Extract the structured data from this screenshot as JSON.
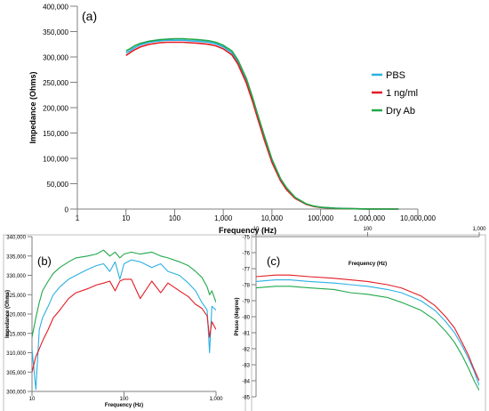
{
  "chart_data": [
    {
      "panel_label": "(a)",
      "type": "line",
      "xscale": "log",
      "xlabel": "Frequency (Hz)",
      "ylabel": "Impedance (Ohms)",
      "xlim": [
        1,
        10000000
      ],
      "ylim": [
        0,
        400000
      ],
      "xticks": [
        "1",
        "10",
        "100",
        "1,000",
        "10,000",
        "100,000",
        "1,000,000",
        "10,000,000"
      ],
      "yticks": [
        "0",
        "50,000",
        "100,000",
        "150,000",
        "200,000",
        "250,000",
        "300,000",
        "350,000",
        "400,000"
      ],
      "grid": false,
      "legend_position": "right",
      "series": [
        {
          "name": "PBS",
          "color": "#2ab0e3",
          "x": [
            10,
            12,
            15,
            20,
            30,
            50,
            70,
            100,
            150,
            200,
            300,
            500,
            700,
            1000,
            1500,
            2000,
            3000,
            4000,
            5000,
            7000,
            10000,
            15000,
            20000,
            30000,
            50000,
            70000,
            100000,
            200000,
            500000,
            1000000,
            2000000,
            4000000
          ],
          "y": [
            308000,
            312000,
            318000,
            324000,
            329000,
            332000,
            333000,
            333000,
            333000,
            332000,
            331000,
            329000,
            326000,
            320000,
            308000,
            290000,
            252000,
            216000,
            185000,
            140000,
            95000,
            58000,
            40000,
            22000,
            10000,
            6000,
            3500,
            1500,
            500,
            200,
            100,
            0
          ]
        },
        {
          "name": "1 ng/ml",
          "color": "#e31b23",
          "x": [
            10,
            12,
            15,
            20,
            30,
            50,
            70,
            100,
            150,
            200,
            300,
            500,
            700,
            1000,
            1500,
            2000,
            3000,
            4000,
            5000,
            7000,
            10000,
            15000,
            20000,
            30000,
            50000,
            70000,
            100000,
            200000,
            500000,
            1000000,
            2000000,
            4000000
          ],
          "y": [
            303000,
            308000,
            314000,
            320000,
            325000,
            328000,
            329000,
            329000,
            329000,
            328000,
            327000,
            325000,
            322000,
            316000,
            304000,
            286000,
            248000,
            212000,
            181000,
            136000,
            92000,
            56000,
            38000,
            21000,
            9500,
            5500,
            3200,
            1400,
            450,
            180,
            90,
            0
          ]
        },
        {
          "name": "Dry Ab",
          "color": "#20a84a",
          "x": [
            10,
            12,
            15,
            20,
            30,
            50,
            70,
            100,
            150,
            200,
            300,
            500,
            700,
            1000,
            1500,
            2000,
            3000,
            4000,
            5000,
            7000,
            10000,
            15000,
            20000,
            30000,
            50000,
            70000,
            100000,
            200000,
            500000,
            1000000,
            2000000,
            4000000
          ],
          "y": [
            312000,
            316000,
            322000,
            327000,
            331000,
            334000,
            335000,
            336000,
            336000,
            335000,
            334000,
            332000,
            329000,
            323000,
            312000,
            294000,
            257000,
            220000,
            189000,
            144000,
            98000,
            60000,
            42000,
            23000,
            10500,
            6200,
            3600,
            1600,
            520,
            210,
            110,
            0
          ]
        }
      ]
    },
    {
      "panel_label": "(b)",
      "type": "line",
      "xscale": "log",
      "xlabel": "Frequency (Hz)",
      "ylabel": "Impedance (Ohms)",
      "xlim": [
        10,
        1000
      ],
      "ylim": [
        300000,
        340000
      ],
      "xticks": [
        "10",
        "100",
        "1,000"
      ],
      "yticks": [
        "300,000",
        "305,000",
        "310,000",
        "315,000",
        "320,000",
        "325,000",
        "330,000",
        "335,000",
        "340,000"
      ],
      "grid": false,
      "series": [
        {
          "name": "PBS",
          "color": "#2ab0e3",
          "x": [
            10,
            11,
            12,
            13,
            15,
            17,
            20,
            25,
            30,
            40,
            50,
            60,
            70,
            80,
            90,
            100,
            120,
            150,
            200,
            250,
            300,
            400,
            500,
            600,
            700,
            800,
            850,
            900,
            1000
          ],
          "y": [
            311000,
            300500,
            316000,
            319000,
            322000,
            325000,
            327000,
            329000,
            330000,
            331500,
            332500,
            333000,
            331000,
            333500,
            329000,
            333000,
            334000,
            333500,
            332000,
            333000,
            331000,
            330000,
            328000,
            326000,
            323000,
            321000,
            310000,
            322000,
            321000
          ]
        },
        {
          "name": "1 ng/ml",
          "color": "#e31b23",
          "x": [
            10,
            11,
            12,
            13,
            15,
            17,
            20,
            25,
            30,
            40,
            50,
            60,
            70,
            80,
            90,
            100,
            120,
            150,
            200,
            250,
            300,
            400,
            500,
            600,
            700,
            800,
            850,
            900,
            1000
          ],
          "y": [
            305000,
            309000,
            311000,
            313000,
            316000,
            319000,
            321000,
            324000,
            325500,
            326500,
            327500,
            328000,
            328500,
            326000,
            328500,
            329000,
            329000,
            324000,
            328500,
            325500,
            328000,
            326000,
            324500,
            322500,
            321500,
            319500,
            314000,
            318000,
            316000
          ]
        },
        {
          "name": "Dry Ab",
          "color": "#20a84a",
          "x": [
            10,
            11,
            12,
            13,
            15,
            17,
            20,
            25,
            30,
            40,
            50,
            60,
            70,
            80,
            90,
            100,
            120,
            150,
            200,
            250,
            300,
            400,
            500,
            600,
            700,
            800,
            850,
            900,
            1000
          ],
          "y": [
            314000,
            319000,
            323000,
            326000,
            328500,
            330500,
            332000,
            333500,
            334500,
            335000,
            335500,
            336500,
            335000,
            336000,
            334500,
            335500,
            336000,
            335500,
            336000,
            335000,
            334500,
            333500,
            332500,
            331000,
            329500,
            327000,
            325000,
            326000,
            323000
          ]
        }
      ]
    },
    {
      "panel_label": "(c)",
      "type": "line",
      "xscale": "log",
      "xlabel": "Frequency (Hz)",
      "ylabel": "Phase (degree)",
      "xlim": [
        10,
        1000
      ],
      "ylim": [
        -85,
        -75
      ],
      "xticks": [
        "10",
        "100",
        "1,000"
      ],
      "yticks": [
        "-75",
        "-76",
        "-77",
        "-78",
        "-79",
        "-80",
        "-81",
        "-82",
        "-83",
        "-84",
        "-85"
      ],
      "grid": false,
      "series": [
        {
          "name": "PBS",
          "color": "#2ab0e3",
          "x": [
            10,
            15,
            20,
            30,
            50,
            70,
            100,
            150,
            200,
            300,
            400,
            500,
            600,
            700,
            800,
            900,
            1000
          ],
          "y": [
            -77.8,
            -77.7,
            -77.7,
            -77.8,
            -77.9,
            -78.0,
            -78.1,
            -78.3,
            -78.5,
            -79.0,
            -79.6,
            -80.3,
            -81.0,
            -81.8,
            -82.6,
            -83.4,
            -84.3
          ]
        },
        {
          "name": "1 ng/ml",
          "color": "#e31b23",
          "x": [
            10,
            15,
            20,
            30,
            50,
            70,
            100,
            150,
            200,
            300,
            400,
            500,
            600,
            700,
            800,
            900,
            1000
          ],
          "y": [
            -77.5,
            -77.4,
            -77.4,
            -77.5,
            -77.6,
            -77.7,
            -77.8,
            -78.0,
            -78.2,
            -78.7,
            -79.3,
            -80.0,
            -80.7,
            -81.6,
            -82.4,
            -83.3,
            -84.0
          ]
        },
        {
          "name": "Dry Ab",
          "color": "#20a84a",
          "x": [
            10,
            15,
            20,
            30,
            50,
            70,
            100,
            150,
            200,
            300,
            400,
            500,
            600,
            700,
            800,
            900,
            1000
          ],
          "y": [
            -78.2,
            -78.1,
            -78.1,
            -78.2,
            -78.3,
            -78.5,
            -78.6,
            -78.8,
            -79.1,
            -79.6,
            -80.2,
            -80.9,
            -81.6,
            -82.4,
            -83.2,
            -84.0,
            -84.6
          ]
        }
      ]
    }
  ]
}
